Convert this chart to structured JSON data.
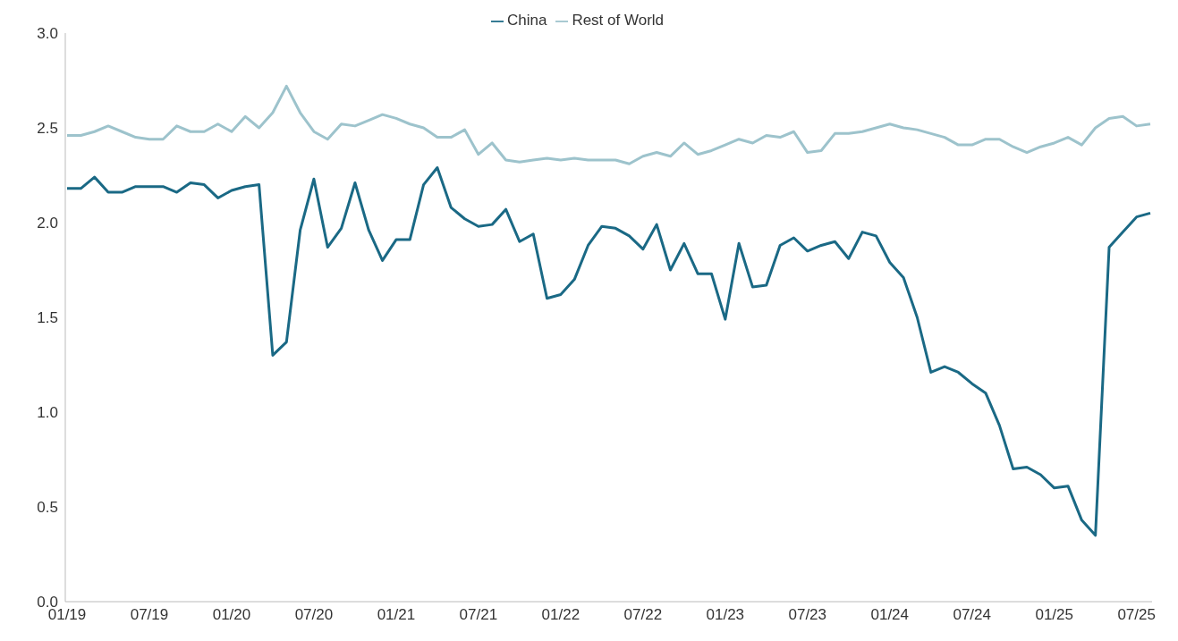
{
  "chart_data": {
    "type": "line",
    "categories": [
      "01/19",
      null,
      null,
      null,
      null,
      null,
      "07/19",
      null,
      null,
      null,
      null,
      null,
      "01/20",
      null,
      null,
      null,
      null,
      null,
      "07/20",
      null,
      null,
      null,
      null,
      null,
      "01/21",
      null,
      null,
      null,
      null,
      null,
      "07/21",
      null,
      null,
      null,
      null,
      null,
      "01/22",
      null,
      null,
      null,
      null,
      null,
      "07/22",
      null,
      null,
      null,
      null,
      null,
      "01/23",
      null,
      null,
      null,
      null,
      null,
      "07/23",
      null,
      null,
      null,
      null,
      null,
      "01/24",
      null,
      null,
      null,
      null,
      null,
      "07/24",
      null,
      null,
      null,
      null,
      null,
      "01/25",
      null,
      null,
      null,
      null,
      null,
      "07/25",
      null
    ],
    "series": [
      {
        "name": "China",
        "color": "#1a6985",
        "values": [
          2.18,
          2.18,
          2.24,
          2.16,
          2.16,
          2.19,
          2.19,
          2.19,
          2.16,
          2.21,
          2.2,
          2.13,
          2.17,
          2.19,
          2.2,
          1.3,
          1.37,
          1.96,
          2.23,
          1.87,
          1.97,
          2.21,
          1.96,
          1.8,
          1.91,
          1.91,
          2.2,
          2.29,
          2.08,
          2.02,
          1.98,
          1.99,
          2.07,
          1.9,
          1.94,
          1.6,
          1.62,
          1.7,
          1.88,
          1.98,
          1.97,
          1.93,
          1.86,
          1.99,
          1.75,
          1.89,
          1.73,
          1.73,
          1.49,
          1.89,
          1.66,
          1.67,
          1.88,
          1.92,
          1.85,
          1.88,
          1.9,
          1.81,
          1.95,
          1.93,
          1.79,
          1.71,
          1.5,
          1.21,
          1.24,
          1.21,
          1.15,
          1.1,
          0.93,
          0.7,
          0.71,
          0.67,
          0.6,
          0.61,
          0.43,
          0.35,
          1.87,
          1.95,
          2.03,
          2.05
        ]
      },
      {
        "name": "Rest of World",
        "color": "#9dc3cc",
        "values": [
          2.46,
          2.46,
          2.48,
          2.51,
          2.48,
          2.45,
          2.44,
          2.44,
          2.51,
          2.48,
          2.48,
          2.52,
          2.48,
          2.56,
          2.5,
          2.58,
          2.72,
          2.58,
          2.48,
          2.44,
          2.52,
          2.51,
          2.54,
          2.57,
          2.55,
          2.52,
          2.5,
          2.45,
          2.45,
          2.49,
          2.36,
          2.42,
          2.33,
          2.32,
          2.33,
          2.34,
          2.33,
          2.34,
          2.33,
          2.33,
          2.33,
          2.31,
          2.35,
          2.37,
          2.35,
          2.42,
          2.36,
          2.38,
          2.41,
          2.44,
          2.42,
          2.46,
          2.45,
          2.48,
          2.37,
          2.38,
          2.47,
          2.47,
          2.48,
          2.5,
          2.52,
          2.5,
          2.49,
          2.47,
          2.45,
          2.41,
          2.41,
          2.44,
          2.44,
          2.4,
          2.37,
          2.4,
          2.42,
          2.45,
          2.41,
          2.5,
          2.55,
          2.56,
          2.51,
          2.52
        ]
      }
    ],
    "ylim": [
      0,
      3
    ],
    "yticks": [
      {
        "value": 0,
        "label": "0.0"
      },
      {
        "value": 0.5,
        "label": "0.5"
      },
      {
        "value": 1,
        "label": "1.0"
      },
      {
        "value": 1.5,
        "label": "1.5"
      },
      {
        "value": 2,
        "label": "2.0"
      },
      {
        "value": 2.5,
        "label": "2.5"
      },
      {
        "value": 3,
        "label": "3.0"
      }
    ],
    "grid": false,
    "legend": "top",
    "marker": "none",
    "line_style": "solid"
  }
}
